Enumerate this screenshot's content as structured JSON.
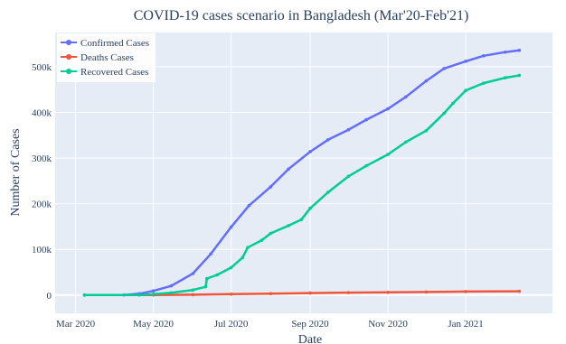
{
  "chart_data": {
    "type": "line",
    "title": "COVID-19 cases scenario in Bangladesh (Mar'20-Feb'21)",
    "xlabel": "Date",
    "ylabel": "Number of Cases",
    "xlim": [
      "2020-02-14",
      "2021-03-10"
    ],
    "ylim": [
      -40000,
      575000
    ],
    "x_ticks": [
      {
        "date": "2020-03-01",
        "label": "Mar 2020"
      },
      {
        "date": "2020-05-01",
        "label": "May 2020"
      },
      {
        "date": "2020-07-01",
        "label": "Jul 2020"
      },
      {
        "date": "2020-09-01",
        "label": "Sep 2020"
      },
      {
        "date": "2020-11-01",
        "label": "Nov 2020"
      },
      {
        "date": "2021-01-01",
        "label": "Jan 2021"
      }
    ],
    "y_ticks": [
      {
        "value": 0,
        "label": "0"
      },
      {
        "value": 100000,
        "label": "100k"
      },
      {
        "value": 200000,
        "label": "200k"
      },
      {
        "value": 300000,
        "label": "300k"
      },
      {
        "value": 400000,
        "label": "400k"
      },
      {
        "value": 500000,
        "label": "500k"
      }
    ],
    "grid": true,
    "legend": "top-left",
    "series": [
      {
        "name": "Confirmed Cases",
        "color": "#636efa",
        "points": [
          [
            "2020-03-08",
            0
          ],
          [
            "2020-04-08",
            200
          ],
          [
            "2020-04-20",
            3000
          ],
          [
            "2020-05-01",
            9000
          ],
          [
            "2020-05-15",
            20000
          ],
          [
            "2020-06-01",
            47000
          ],
          [
            "2020-06-15",
            90000
          ],
          [
            "2020-07-01",
            149000
          ],
          [
            "2020-07-15",
            196000
          ],
          [
            "2020-08-01",
            237000
          ],
          [
            "2020-08-15",
            276000
          ],
          [
            "2020-09-01",
            314000
          ],
          [
            "2020-09-15",
            340000
          ],
          [
            "2020-10-01",
            362000
          ],
          [
            "2020-10-15",
            384000
          ],
          [
            "2020-11-01",
            408000
          ],
          [
            "2020-11-15",
            434000
          ],
          [
            "2020-12-01",
            469000
          ],
          [
            "2020-12-15",
            496000
          ],
          [
            "2021-01-01",
            512000
          ],
          [
            "2021-01-15",
            524000
          ],
          [
            "2021-02-01",
            532000
          ],
          [
            "2021-02-12",
            536000
          ]
        ]
      },
      {
        "name": "Deaths Cases",
        "color": "#ef553b",
        "points": [
          [
            "2020-03-08",
            0
          ],
          [
            "2020-05-01",
            200
          ],
          [
            "2020-06-01",
            700
          ],
          [
            "2020-07-01",
            1900
          ],
          [
            "2020-08-01",
            3100
          ],
          [
            "2020-09-01",
            4300
          ],
          [
            "2020-10-01",
            5200
          ],
          [
            "2020-11-01",
            5900
          ],
          [
            "2020-12-01",
            6700
          ],
          [
            "2021-01-01",
            7600
          ],
          [
            "2021-02-12",
            8200
          ]
        ]
      },
      {
        "name": "Recovered Cases",
        "color": "#00cc96",
        "points": [
          [
            "2020-03-08",
            0
          ],
          [
            "2020-04-20",
            100
          ],
          [
            "2020-05-01",
            2000
          ],
          [
            "2020-05-15",
            5000
          ],
          [
            "2020-06-01",
            11000
          ],
          [
            "2020-06-11",
            18000
          ],
          [
            "2020-06-12",
            36000
          ],
          [
            "2020-06-20",
            44000
          ],
          [
            "2020-07-01",
            60000
          ],
          [
            "2020-07-10",
            82000
          ],
          [
            "2020-07-14",
            104000
          ],
          [
            "2020-07-25",
            120000
          ],
          [
            "2020-08-01",
            135000
          ],
          [
            "2020-08-15",
            152000
          ],
          [
            "2020-08-25",
            165000
          ],
          [
            "2020-09-01",
            190000
          ],
          [
            "2020-09-15",
            225000
          ],
          [
            "2020-10-01",
            260000
          ],
          [
            "2020-10-15",
            283000
          ],
          [
            "2020-11-01",
            308000
          ],
          [
            "2020-11-15",
            335000
          ],
          [
            "2020-12-01",
            360000
          ],
          [
            "2020-12-15",
            398000
          ],
          [
            "2020-12-22",
            420000
          ],
          [
            "2021-01-01",
            448000
          ],
          [
            "2021-01-15",
            464000
          ],
          [
            "2021-02-01",
            476000
          ],
          [
            "2021-02-12",
            481000
          ]
        ]
      }
    ]
  }
}
